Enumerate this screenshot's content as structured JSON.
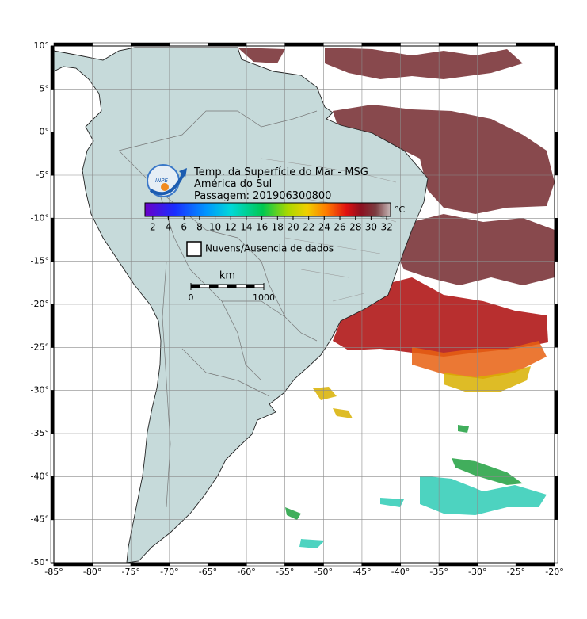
{
  "map": {
    "title": [
      "Temp. da Superfície do Mar - MSG",
      "América do Sul",
      "Passagem: 201906300800"
    ],
    "logo": "INPE",
    "colorbar": {
      "unit": "°C",
      "lim": [
        1,
        32.5
      ],
      "ticks": [
        2,
        4,
        6,
        8,
        10,
        12,
        14,
        16,
        18,
        20,
        22,
        24,
        26,
        28,
        30,
        32
      ]
    },
    "legend": "Nuvens/Ausencia de dados",
    "scale_bar": {
      "unit": "km",
      "ticks": [
        0,
        1000
      ]
    },
    "xlim": [
      -85,
      -20
    ],
    "ylim": [
      -50,
      10
    ],
    "xticks": [
      {
        "value": -85,
        "label": "-85°"
      },
      {
        "value": -80,
        "label": "-80°"
      },
      {
        "value": -75,
        "label": "-75°"
      },
      {
        "value": -70,
        "label": "-70°"
      },
      {
        "value": -65,
        "label": "-65°"
      },
      {
        "value": -60,
        "label": "-60°"
      },
      {
        "value": -55,
        "label": "-55°"
      },
      {
        "value": -50,
        "label": "-50°"
      },
      {
        "value": -45,
        "label": "-45°"
      },
      {
        "value": -40,
        "label": "-40°"
      },
      {
        "value": -35,
        "label": "-35°"
      },
      {
        "value": -30,
        "label": "-30°"
      },
      {
        "value": -25,
        "label": "-25°"
      },
      {
        "value": -20,
        "label": "-20°"
      }
    ],
    "yticks": [
      {
        "value": 10,
        "label": "10°"
      },
      {
        "value": 5,
        "label": "5°"
      },
      {
        "value": 0,
        "label": "0°"
      },
      {
        "value": -5,
        "label": "-5°"
      },
      {
        "value": -10,
        "label": "-10°"
      },
      {
        "value": -15,
        "label": "-15°"
      },
      {
        "value": -20,
        "label": "-20°"
      },
      {
        "value": -25,
        "label": "-25°"
      },
      {
        "value": -30,
        "label": "-30°"
      },
      {
        "value": -35,
        "label": "-35°"
      },
      {
        "value": -40,
        "label": "-40°"
      },
      {
        "value": -45,
        "label": "-45°"
      },
      {
        "value": -50,
        "label": "-50°"
      }
    ],
    "grid": true
  }
}
